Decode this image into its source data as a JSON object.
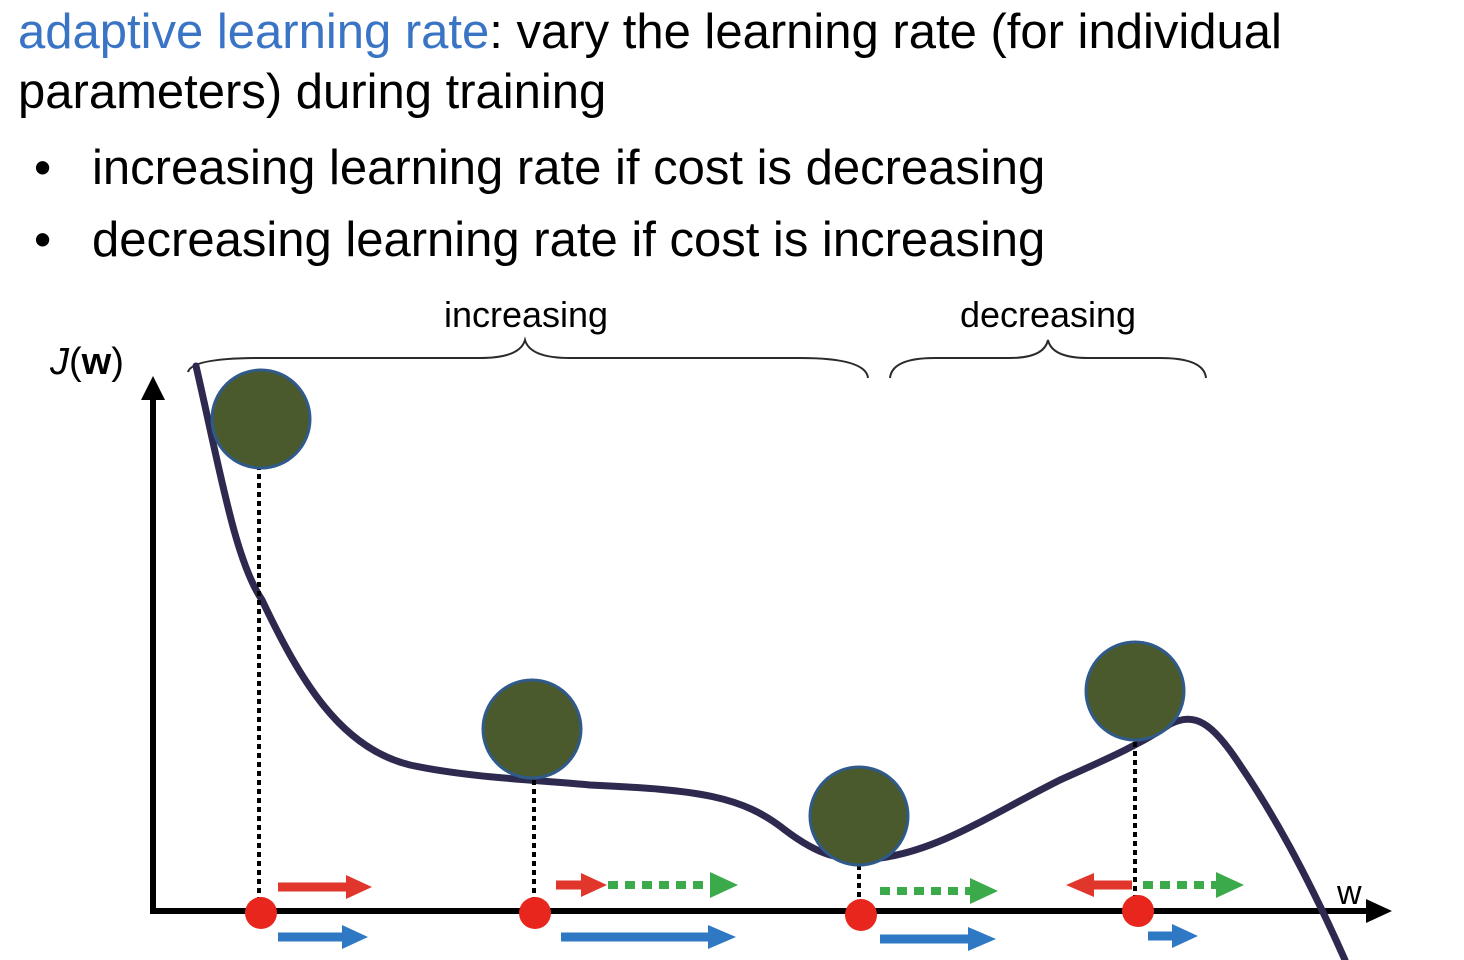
{
  "title": {
    "term": "adaptive learning rate",
    "separator": ":",
    "definition": " vary the learning rate (for individual parameters) during training"
  },
  "bullets": [
    {
      "marker": "•",
      "text": "increasing learning rate if cost is decreasing"
    },
    {
      "marker": "•",
      "text": "decreasing learning rate if cost is increasing"
    }
  ],
  "diagram": {
    "y_axis_label_italic": "J",
    "y_axis_label_open": "(",
    "y_axis_label_bold": "w",
    "y_axis_label_close": ")",
    "x_axis_label": "w",
    "brace_left_label": "increasing",
    "brace_right_label": "decreasing",
    "colors": {
      "curve": "#2e2a4f",
      "ball_fill": "#4a5a2c",
      "ball_stroke": "#2f5a8a",
      "marker": "#e8261e",
      "arrow_red": "#e0362b",
      "arrow_blue": "#2f78c4",
      "arrow_green": "#3aaa4a",
      "axis": "#000000"
    }
  }
}
